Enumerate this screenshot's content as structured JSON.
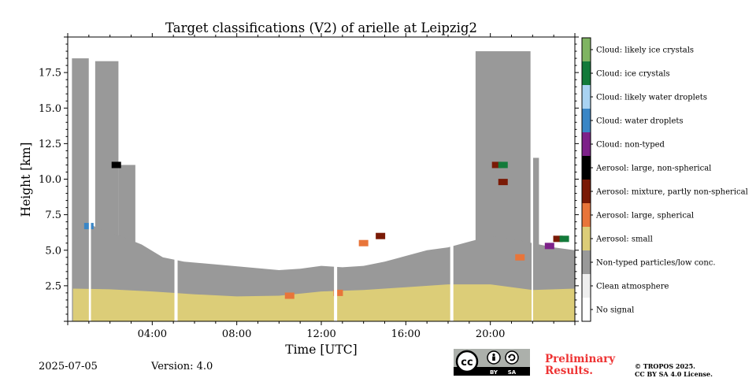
{
  "title": "Target classifications (V2) of arielle at Leipzig2",
  "date": "2025-07-05",
  "version": "Version: 4.0",
  "preliminary": [
    "Preliminary",
    "Results."
  ],
  "copyright": [
    "© TROPOS 2025.",
    "CC BY SA 4.0 License."
  ],
  "license_badge": [
    "cc",
    "BY",
    "SA"
  ],
  "colors": {
    "no_signal": "#ffffff",
    "clean": "#eeeeee",
    "non_typed": "#999999",
    "aerosol_small": "#dccd78",
    "aerosol_large_spherical": "#e8753a",
    "aerosol_mixture": "#7a1a06",
    "aerosol_large_nonspherical": "#000000",
    "cloud_non_typed": "#7d2189",
    "cloud_water_droplets": "#3a86c6",
    "cloud_likely_water": "#a9d3f2",
    "cloud_ice": "#137a3a",
    "cloud_likely_ice": "#7fb462",
    "prelim_red": "#ee3333"
  },
  "chart_data": {
    "type": "heatmap",
    "title": "Target classifications (V2) of arielle at Leipzig2",
    "xlabel": "Time [UTC]",
    "ylabel": "Height [km]",
    "x_range_hours": [
      0,
      24
    ],
    "y_range_km": [
      0,
      20
    ],
    "x_ticks": [
      {
        "h": 4,
        "label": "04:00"
      },
      {
        "h": 8,
        "label": "08:00"
      },
      {
        "h": 12,
        "label": "12:00"
      },
      {
        "h": 16,
        "label": "16:00"
      },
      {
        "h": 20,
        "label": "20:00"
      }
    ],
    "y_ticks": [
      {
        "v": 2.5,
        "label": "2.5"
      },
      {
        "v": 5.0,
        "label": "5.0"
      },
      {
        "v": 7.5,
        "label": "7.5"
      },
      {
        "v": 10.0,
        "label": "10.0"
      },
      {
        "v": 12.5,
        "label": "12.5"
      },
      {
        "v": 15.0,
        "label": "15.0"
      },
      {
        "v": 17.5,
        "label": "17.5"
      }
    ],
    "legend": [
      {
        "label": "Cloud: likely ice crystals",
        "color": "#7fb462"
      },
      {
        "label": "Cloud: ice crystals",
        "color": "#137a3a"
      },
      {
        "label": "Cloud: likely water droplets",
        "color": "#a9d3f2"
      },
      {
        "label": "Cloud: water droplets",
        "color": "#3a86c6"
      },
      {
        "label": "Cloud: non-typed",
        "color": "#7d2189"
      },
      {
        "label": "Aerosol: large, non-spherical",
        "color": "#000000"
      },
      {
        "label": "Aerosol: mixture, partly non-spherical",
        "color": "#7a1a06"
      },
      {
        "label": "Aerosol: large, spherical",
        "color": "#e8753a"
      },
      {
        "label": "Aerosol: small",
        "color": "#dccd78"
      },
      {
        "label": "Non-typed particles/low conc.",
        "color": "#999999"
      },
      {
        "label": "Clean atmosphere",
        "color": "#eeeeee"
      },
      {
        "label": "No signal",
        "color": "#ffffff"
      }
    ],
    "data_gaps_hours": [
      [
        1.0,
        1.1
      ],
      [
        5.05,
        5.2
      ],
      [
        12.6,
        12.75
      ],
      [
        18.1,
        18.25
      ],
      [
        21.95,
        22.0
      ]
    ],
    "aerosol_small_top_km": [
      [
        0.25,
        2.3
      ],
      [
        2.0,
        2.25
      ],
      [
        4.0,
        2.1
      ],
      [
        5.0,
        2.0
      ],
      [
        6.0,
        1.9
      ],
      [
        8.0,
        1.75
      ],
      [
        10.0,
        1.8
      ],
      [
        12.0,
        2.1
      ],
      [
        14.0,
        2.2
      ],
      [
        16.0,
        2.4
      ],
      [
        18.0,
        2.6
      ],
      [
        20.0,
        2.6
      ],
      [
        22.0,
        2.2
      ],
      [
        24.0,
        2.3
      ]
    ],
    "non_typed_top_km": [
      [
        0.25,
        5.5
      ],
      [
        1.1,
        6.8
      ],
      [
        1.5,
        6.5
      ],
      [
        2.5,
        6.0
      ],
      [
        3.5,
        5.4
      ],
      [
        4.5,
        4.5
      ],
      [
        5.5,
        4.2
      ],
      [
        7.0,
        4.0
      ],
      [
        8.5,
        3.8
      ],
      [
        10.0,
        3.6
      ],
      [
        11.0,
        3.7
      ],
      [
        12.0,
        3.9
      ],
      [
        13.0,
        3.8
      ],
      [
        14.0,
        3.9
      ],
      [
        15.0,
        4.2
      ],
      [
        16.0,
        4.6
      ],
      [
        17.0,
        5.0
      ],
      [
        18.0,
        5.2
      ],
      [
        19.0,
        5.6
      ],
      [
        20.0,
        6.0
      ],
      [
        21.0,
        5.8
      ],
      [
        22.0,
        5.5
      ],
      [
        23.0,
        5.2
      ],
      [
        24.0,
        5.0
      ]
    ],
    "grey_columns": [
      {
        "x": [
          0.2,
          1.0
        ],
        "top_km": 18.5
      },
      {
        "x": [
          1.3,
          2.4
        ],
        "top_km": 18.3
      },
      {
        "x": [
          2.4,
          3.2
        ],
        "top_km": 11.0
      },
      {
        "x": [
          19.3,
          21.9
        ],
        "top_km": 19.0
      },
      {
        "x": [
          22.0,
          22.3
        ],
        "top_km": 11.5
      }
    ],
    "feature_patches": [
      {
        "class": "aerosol_large_nonspherical",
        "x": 2.3,
        "y": 11.0
      },
      {
        "class": "cloud_water_droplets",
        "x": 1.0,
        "y": 6.7
      },
      {
        "class": "aerosol_mixture",
        "x": 20.3,
        "y": 11.0
      },
      {
        "class": "cloud_ice",
        "x": 20.6,
        "y": 11.0
      },
      {
        "class": "aerosol_mixture",
        "x": 20.6,
        "y": 9.8
      },
      {
        "class": "aerosol_large_spherical",
        "x": 21.4,
        "y": 4.5
      },
      {
        "class": "aerosol_mixture",
        "x": 23.2,
        "y": 5.8
      },
      {
        "class": "cloud_non_typed",
        "x": 22.8,
        "y": 5.3
      },
      {
        "class": "cloud_ice",
        "x": 23.5,
        "y": 5.8
      },
      {
        "class": "aerosol_large_spherical",
        "x": 10.5,
        "y": 1.8
      },
      {
        "class": "aerosol_large_spherical",
        "x": 12.8,
        "y": 2.0
      },
      {
        "class": "aerosol_large_spherical",
        "x": 14.0,
        "y": 5.5
      },
      {
        "class": "aerosol_mixture",
        "x": 14.8,
        "y": 6.0
      }
    ]
  }
}
